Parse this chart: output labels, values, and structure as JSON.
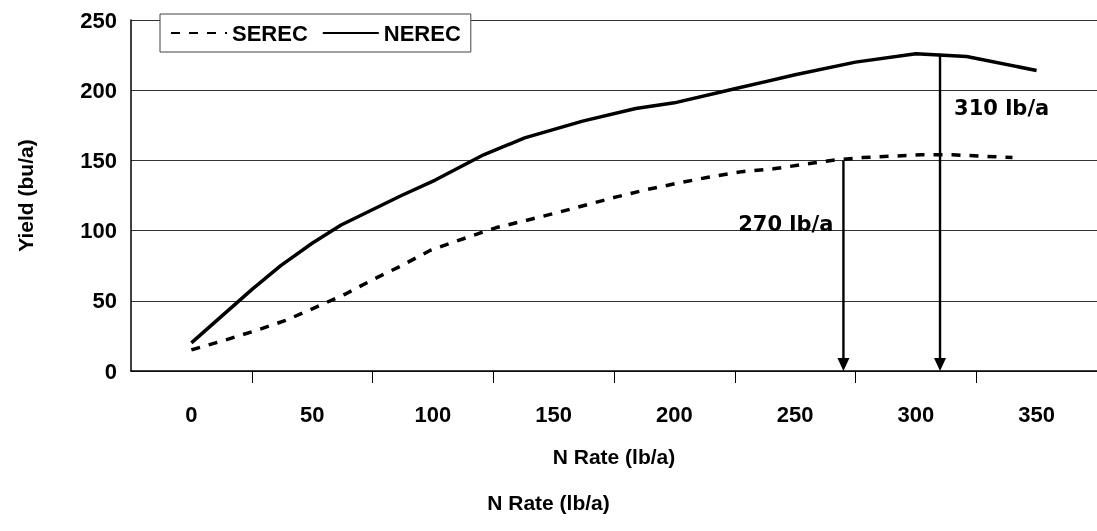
{
  "chart_data": {
    "type": "line",
    "xlabel": "N Rate (lb/a)",
    "ylabel": "Yield (bu/a)",
    "xlim": [
      -25,
      375
    ],
    "xticks": [
      0,
      {
        "value": 25,
        "label": null
      },
      50,
      {
        "value": 75,
        "label": null
      },
      100,
      {
        "value": 125,
        "label": null
      },
      150,
      {
        "value": 175,
        "label": null
      },
      200,
      {
        "value": 225,
        "label": null
      },
      250,
      {
        "value": 275,
        "label": null
      },
      300,
      {
        "value": 325,
        "label": null
      },
      350
    ],
    "ylim": [
      0,
      250
    ],
    "yticks": [
      0,
      50,
      100,
      150,
      200,
      250
    ],
    "grid": "y",
    "legend": "top left",
    "marker": "none",
    "series": [
      {
        "name": "SEREC",
        "color": "#000000",
        "line_style": "dashed",
        "x": [
          0,
          14,
          27,
          39,
          51,
          64,
          75,
          87,
          99,
          114,
          126,
          138,
          152,
          165,
          176,
          188,
          202,
          214,
          228,
          241,
          253,
          265,
          278,
          290,
          302,
          315,
          328,
          340
        ],
        "values": [
          15,
          22,
          29,
          36,
          45,
          55,
          65,
          75,
          86,
          95,
          102,
          107,
          113,
          119,
          124,
          129,
          134,
          138,
          142,
          144,
          147,
          150,
          152,
          153,
          154,
          154,
          153,
          152
        ]
      },
      {
        "name": "NEREC",
        "color": "#000000",
        "line_style": "solid",
        "x": [
          0,
          25,
          37,
          50,
          62,
          87,
          101,
          121,
          138,
          162,
          184,
          200,
          225,
          250,
          275,
          300,
          321,
          350
        ],
        "values": [
          20,
          58,
          75,
          91,
          104,
          125,
          136,
          154,
          166,
          178,
          187,
          191,
          201,
          211,
          220,
          226,
          224,
          214
        ]
      }
    ],
    "annotations": [
      {
        "text": "270 lb/a",
        "x": 270,
        "y": 150
      },
      {
        "text": "310 lb/a",
        "x": 310,
        "y": 226
      },
      "N Rate (lb/a)"
    ]
  }
}
